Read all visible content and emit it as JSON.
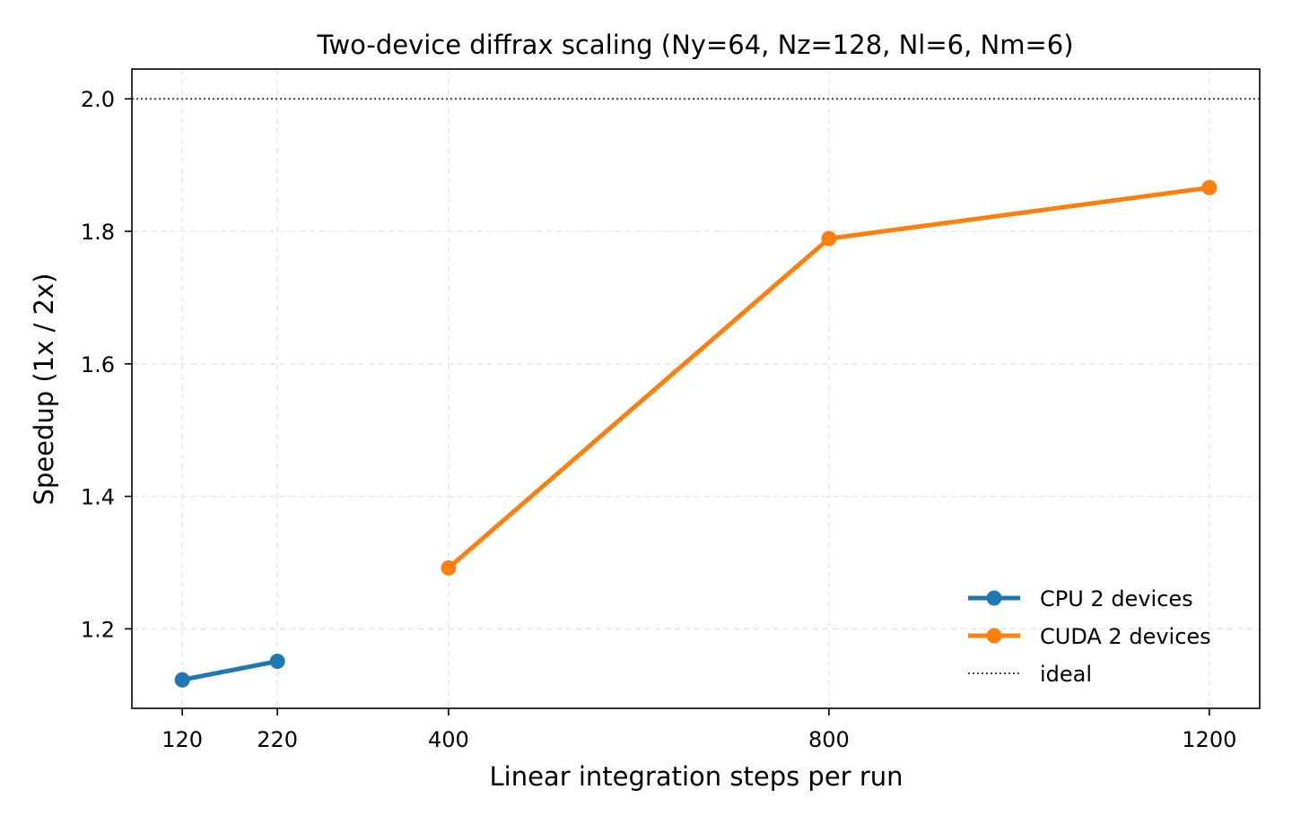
{
  "chart_data": {
    "type": "line",
    "title": "Two-device diffrax scaling (Ny=64, Nz=128, Nl=6, Nm=6)",
    "xlabel": "Linear integration steps per run",
    "ylabel": "Speedup (1x / 2x)",
    "xlim": [
      67,
      1253
    ],
    "ylim": [
      1.08,
      2.045
    ],
    "x_ticks": [
      120,
      220,
      400,
      800,
      1200
    ],
    "y_ticks": [
      1.2,
      1.4,
      1.6,
      1.8,
      2.0
    ],
    "x_tick_labels": [
      "120",
      "220",
      "400",
      "800",
      "1200"
    ],
    "y_tick_labels": [
      "1.2",
      "1.4",
      "1.6",
      "1.8",
      "2.0"
    ],
    "grid": true,
    "legend_position": "lower-right",
    "series": [
      {
        "name": "CPU 2 devices",
        "color": "#1f77b4",
        "marker": "circle",
        "style": "solid",
        "x": [
          120,
          220
        ],
        "y": [
          1.123,
          1.151
        ]
      },
      {
        "name": "CUDA 2 devices",
        "color": "#ff7f0e",
        "marker": "circle",
        "style": "solid",
        "x": [
          400,
          800,
          1200
        ],
        "y": [
          1.292,
          1.789,
          1.866
        ]
      }
    ],
    "reference_line": {
      "name": "ideal",
      "y": 2.0,
      "color": "#444444",
      "style": "dotted"
    }
  }
}
